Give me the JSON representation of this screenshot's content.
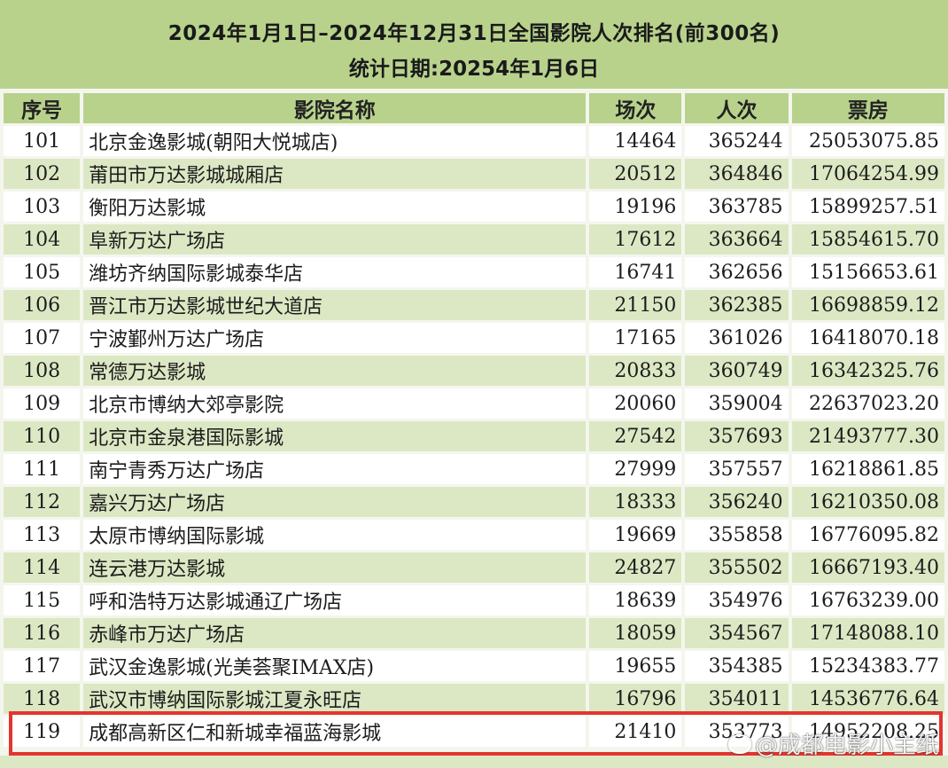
{
  "header": {
    "title": "2024年1月1日–2024年12月31日全国影院人次排名(前300名)",
    "subtitle": "统计日期:20254年1月6日"
  },
  "columns": [
    "序号",
    "影院名称",
    "场次",
    "人次",
    "票房"
  ],
  "rows": [
    {
      "rank": "101",
      "name": "北京金逸影城(朝阳大悦城店)",
      "shows": "14464",
      "admissions": "365244",
      "box_office": "25053075.85"
    },
    {
      "rank": "102",
      "name": "莆田市万达影城城厢店",
      "shows": "20512",
      "admissions": "364846",
      "box_office": "17064254.99"
    },
    {
      "rank": "103",
      "name": "衡阳万达影城",
      "shows": "19196",
      "admissions": "363785",
      "box_office": "15899257.51"
    },
    {
      "rank": "104",
      "name": "阜新万达广场店",
      "shows": "17612",
      "admissions": "363664",
      "box_office": "15854615.70"
    },
    {
      "rank": "105",
      "name": "潍坊齐纳国际影城泰华店",
      "shows": "16741",
      "admissions": "362656",
      "box_office": "15156653.61"
    },
    {
      "rank": "106",
      "name": "晋江市万达影城世纪大道店",
      "shows": "21150",
      "admissions": "362385",
      "box_office": "16698859.12"
    },
    {
      "rank": "107",
      "name": "宁波鄞州万达广场店",
      "shows": "17165",
      "admissions": "361026",
      "box_office": "16418070.18"
    },
    {
      "rank": "108",
      "name": "常德万达影城",
      "shows": "20833",
      "admissions": "360749",
      "box_office": "16342325.76"
    },
    {
      "rank": "109",
      "name": "北京市博纳大郊亭影院",
      "shows": "20060",
      "admissions": "359004",
      "box_office": "22637023.20"
    },
    {
      "rank": "110",
      "name": "北京市金泉港国际影城",
      "shows": "27542",
      "admissions": "357693",
      "box_office": "21493777.30"
    },
    {
      "rank": "111",
      "name": "南宁青秀万达广场店",
      "shows": "27999",
      "admissions": "357557",
      "box_office": "16218861.85"
    },
    {
      "rank": "112",
      "name": "嘉兴万达广场店",
      "shows": "18333",
      "admissions": "356240",
      "box_office": "16210350.08"
    },
    {
      "rank": "113",
      "name": "太原市博纳国际影城",
      "shows": "19669",
      "admissions": "355858",
      "box_office": "16776095.82"
    },
    {
      "rank": "114",
      "name": "连云港万达影城",
      "shows": "24827",
      "admissions": "355502",
      "box_office": "16667193.40"
    },
    {
      "rank": "115",
      "name": "呼和浩特万达影城通辽广场店",
      "shows": "18639",
      "admissions": "354976",
      "box_office": "16763239.00"
    },
    {
      "rank": "116",
      "name": "赤峰市万达广场店",
      "shows": "18059",
      "admissions": "354567",
      "box_office": "17148088.10"
    },
    {
      "rank": "117",
      "name": "武汉金逸影城(光美荟聚IMAX店)",
      "shows": "19655",
      "admissions": "354385",
      "box_office": "15234383.77"
    },
    {
      "rank": "118",
      "name": "武汉市博纳国际影城江夏永旺店",
      "shows": "16796",
      "admissions": "354011",
      "box_office": "14536776.64"
    },
    {
      "rank": "119",
      "name": "成都高新区仁和新城幸福蓝海影城",
      "shows": "21410",
      "admissions": "353773",
      "box_office": "14952208.25"
    }
  ],
  "watermark": "@成都电影小主纸",
  "highlight_color": "#e2352f",
  "accent_green": "#b8d28c",
  "stripe_green": "#dce8c4"
}
